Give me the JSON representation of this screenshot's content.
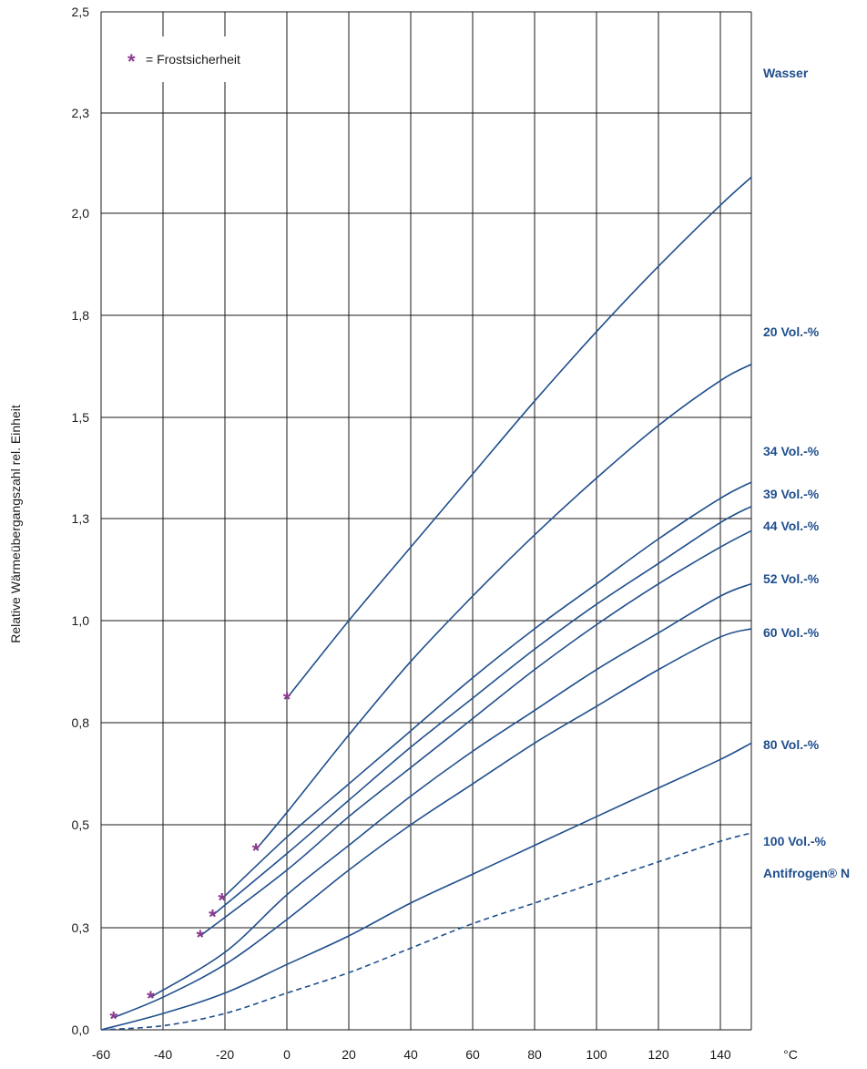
{
  "chart_data": {
    "type": "line",
    "ylabel": "Relative Wärmeübergangszahl rel. Einheit",
    "xunit": "°C",
    "xlim": [
      -60,
      150
    ],
    "ylim_labels_note": "nonlinear tick spacing",
    "x_ticks": [
      -60,
      -40,
      -20,
      0,
      20,
      40,
      60,
      80,
      100,
      120,
      140
    ],
    "x_tick_labels": [
      "-60",
      "-40",
      "-20",
      "0",
      "20",
      "40",
      "60",
      "80",
      "100",
      "120",
      "140"
    ],
    "y_tick_labels": [
      "0,0",
      "0,3",
      "0,5",
      "0,8",
      "1,0",
      "1,3",
      "1,5",
      "1,8",
      "2,0",
      "2,3",
      "2,5"
    ],
    "legend": {
      "marker": "*",
      "text": "= Frostsicherheit",
      "color": "#8e3a8e"
    },
    "grid": true,
    "series": [
      {
        "name": "Wasser",
        "dashed": false,
        "x": [
          0,
          20,
          40,
          60,
          80,
          100,
          120,
          140,
          150
        ],
        "y": [
          0.81,
          1.0,
          1.18,
          1.36,
          1.54,
          1.71,
          1.87,
          2.02,
          2.09
        ]
      },
      {
        "name": "20 Vol.-%",
        "dashed": false,
        "x": [
          -10,
          0,
          20,
          40,
          60,
          80,
          100,
          120,
          140,
          150
        ],
        "y": [
          0.44,
          0.53,
          0.72,
          0.9,
          1.06,
          1.21,
          1.35,
          1.48,
          1.59,
          1.63
        ]
      },
      {
        "name": "34 Vol.-%",
        "dashed": false,
        "x": [
          -21,
          0,
          20,
          40,
          60,
          80,
          100,
          120,
          140,
          150
        ],
        "y": [
          0.32,
          0.47,
          0.6,
          0.73,
          0.86,
          0.98,
          1.09,
          1.2,
          1.3,
          1.34
        ]
      },
      {
        "name": "39 Vol.-%",
        "dashed": false,
        "x": [
          -24,
          0,
          20,
          40,
          60,
          80,
          100,
          120,
          140,
          150
        ],
        "y": [
          0.28,
          0.43,
          0.56,
          0.69,
          0.81,
          0.93,
          1.04,
          1.14,
          1.24,
          1.28
        ]
      },
      {
        "name": "44 Vol.-%",
        "dashed": false,
        "x": [
          -28,
          0,
          20,
          40,
          60,
          80,
          100,
          120,
          140,
          150
        ],
        "y": [
          0.23,
          0.39,
          0.52,
          0.64,
          0.76,
          0.88,
          0.99,
          1.09,
          1.18,
          1.22
        ]
      },
      {
        "name": "52 Vol.-%",
        "dashed": false,
        "x": [
          -44,
          -20,
          0,
          20,
          40,
          60,
          80,
          100,
          120,
          140,
          150
        ],
        "y": [
          0.08,
          0.19,
          0.33,
          0.45,
          0.57,
          0.68,
          0.78,
          0.88,
          0.97,
          1.06,
          1.09
        ]
      },
      {
        "name": "60 Vol.-%",
        "dashed": false,
        "x": [
          -56,
          -40,
          -20,
          0,
          20,
          40,
          60,
          80,
          100,
          120,
          140,
          150
        ],
        "y": [
          0.03,
          0.08,
          0.16,
          0.27,
          0.39,
          0.5,
          0.6,
          0.7,
          0.79,
          0.88,
          0.96,
          0.98
        ]
      },
      {
        "name": "80 Vol.-%",
        "dashed": false,
        "x": [
          -60,
          -40,
          -20,
          0,
          20,
          40,
          60,
          80,
          100,
          120,
          140,
          150
        ],
        "y": [
          0.0,
          0.04,
          0.09,
          0.16,
          0.23,
          0.31,
          0.38,
          0.45,
          0.52,
          0.59,
          0.66,
          0.7
        ]
      },
      {
        "name": "100 Vol.-%",
        "name2": "Antifrogen® N",
        "dashed": true,
        "x": [
          -60,
          -40,
          -20,
          0,
          20,
          40,
          60,
          80,
          100,
          120,
          140,
          150
        ],
        "y": [
          0.0,
          0.01,
          0.04,
          0.09,
          0.14,
          0.2,
          0.26,
          0.31,
          0.36,
          0.41,
          0.46,
          0.48
        ]
      }
    ],
    "frost_points": [
      {
        "x": -56,
        "y": 0.03
      },
      {
        "x": -44,
        "y": 0.08
      },
      {
        "x": -28,
        "y": 0.23
      },
      {
        "x": -24,
        "y": 0.28
      },
      {
        "x": -21,
        "y": 0.32
      },
      {
        "x": -10,
        "y": 0.44
      },
      {
        "x": 0,
        "y": 0.81
      }
    ]
  }
}
